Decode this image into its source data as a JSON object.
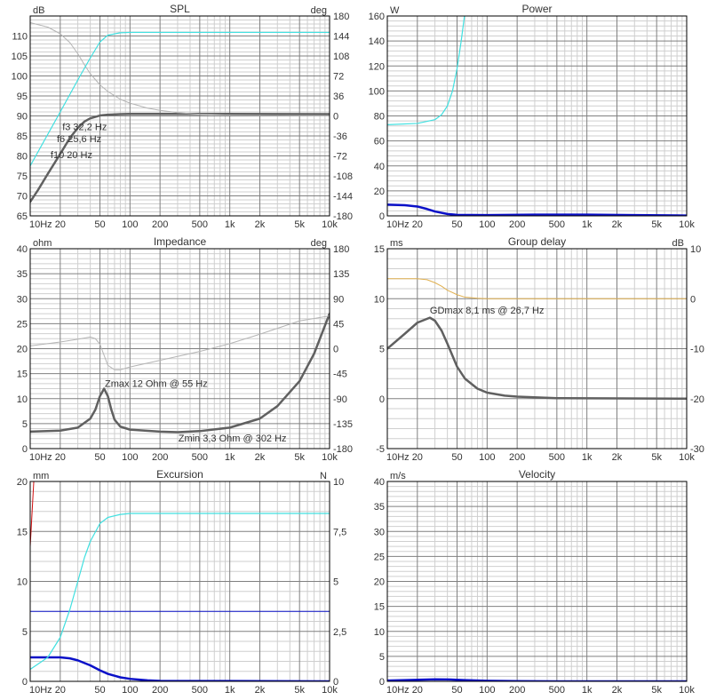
{
  "x_axis": {
    "scale": "log",
    "range": [
      10,
      10000
    ],
    "tick_values": [
      10,
      20,
      50,
      100,
      200,
      500,
      1000,
      2000,
      5000,
      10000
    ],
    "tick_labels": [
      "10Hz",
      "20",
      "50",
      "100",
      "200",
      "500",
      "1k",
      "2k",
      "5k",
      "10k"
    ]
  },
  "colors": {
    "frame": "#000000",
    "grid_major": "#808080",
    "grid_minor": "#cfcfcf",
    "main_curve": "#606060",
    "phase_curve": "#b4b4b4",
    "cyan": "#40e0e0",
    "blue": "#0a10c8",
    "orange": "#e0b050",
    "red": "#d01010"
  },
  "chart_data": [
    {
      "id": "spl",
      "type": "line",
      "title": "SPL",
      "y_unit_left": "dB",
      "y_unit_right": "deg",
      "ylim": [
        65,
        115
      ],
      "yticks": [
        65,
        70,
        75,
        80,
        85,
        90,
        95,
        100,
        105,
        110
      ],
      "y2lim": [
        -180,
        180
      ],
      "y2ticks": [
        -180,
        -144,
        -108,
        -72,
        -36,
        0,
        36,
        72,
        108,
        144,
        180
      ],
      "y2tick_labels": [
        "-180",
        "-144",
        "-108",
        "-72",
        "-36",
        "0",
        "36",
        "72",
        "108",
        "144",
        "180"
      ],
      "annotations": [
        {
          "text": "f3 32,2 Hz",
          "x": 21,
          "y": 86.5
        },
        {
          "text": "f6 25,6 Hz",
          "x": 18.5,
          "y": 83.5
        },
        {
          "text": "f10 20 Hz",
          "x": 16,
          "y": 79.5
        }
      ],
      "series": [
        {
          "axis": "y",
          "color_key": "main_curve",
          "width": 2.5,
          "points": [
            [
              10,
              68.5
            ],
            [
              12,
              71.5
            ],
            [
              15,
              75.5
            ],
            [
              20,
              80.5
            ],
            [
              25,
              84.5
            ],
            [
              30,
              87
            ],
            [
              35,
              88.6
            ],
            [
              40,
              89.4
            ],
            [
              50,
              90.1
            ],
            [
              60,
              90.3
            ],
            [
              80,
              90.45
            ],
            [
              100,
              90.5
            ],
            [
              500,
              90.5
            ],
            [
              10000,
              90.45
            ]
          ]
        },
        {
          "axis": "y2",
          "color_key": "phase_curve",
          "width": 1,
          "points": [
            [
              10,
              168
            ],
            [
              15,
              160
            ],
            [
              20,
              148
            ],
            [
              25,
              132
            ],
            [
              30,
              112
            ],
            [
              35,
              92
            ],
            [
              40,
              76
            ],
            [
              50,
              56
            ],
            [
              60,
              44
            ],
            [
              80,
              30
            ],
            [
              100,
              23
            ],
            [
              150,
              14
            ],
            [
              200,
              10
            ],
            [
              300,
              6
            ],
            [
              500,
              3
            ],
            [
              1000,
              1.5
            ],
            [
              10000,
              0
            ]
          ]
        },
        {
          "axis": "y",
          "color_key": "cyan",
          "width": 1.2,
          "points": [
            [
              10,
              77.5
            ],
            [
              20,
              91
            ],
            [
              30,
              99
            ],
            [
              40,
              104.5
            ],
            [
              50,
              108.5
            ],
            [
              60,
              110.2
            ],
            [
              80,
              110.8
            ],
            [
              100,
              110.9
            ],
            [
              10000,
              110.9
            ]
          ]
        }
      ]
    },
    {
      "id": "power",
      "type": "line",
      "title": "Power",
      "y_unit_left": "W",
      "ylim": [
        0,
        160
      ],
      "yticks": [
        0,
        20,
        40,
        60,
        80,
        100,
        120,
        140,
        160
      ],
      "series": [
        {
          "axis": "y",
          "color_key": "blue",
          "width": 2.5,
          "points": [
            [
              10,
              9
            ],
            [
              15,
              8.5
            ],
            [
              20,
              7.5
            ],
            [
              25,
              5.5
            ],
            [
              30,
              3.5
            ],
            [
              40,
              1.5
            ],
            [
              50,
              0.8
            ],
            [
              100,
              0.6
            ],
            [
              300,
              1
            ],
            [
              1000,
              1
            ],
            [
              3000,
              0.6
            ],
            [
              10000,
              0.3
            ]
          ]
        },
        {
          "axis": "y",
          "color_key": "cyan",
          "width": 1.2,
          "points": [
            [
              10,
              73
            ],
            [
              20,
              74
            ],
            [
              30,
              77
            ],
            [
              35,
              81
            ],
            [
              40,
              88
            ],
            [
              45,
              100
            ],
            [
              50,
              118
            ],
            [
              55,
              140
            ],
            [
              60,
              163
            ]
          ]
        }
      ]
    },
    {
      "id": "impedance",
      "type": "line",
      "title": "Impedance",
      "y_unit_left": "ohm",
      "y_unit_right": "deg",
      "ylim": [
        0,
        40
      ],
      "yticks": [
        0,
        5,
        10,
        15,
        20,
        25,
        30,
        35,
        40
      ],
      "y2lim": [
        -180,
        180
      ],
      "y2ticks": [
        -180,
        -135,
        -90,
        -45,
        0,
        45,
        90,
        135,
        180
      ],
      "y2tick_labels": [
        "-180",
        "-135",
        "-90",
        "-45",
        "0",
        "45",
        "90",
        "135",
        "180"
      ],
      "annotations": [
        {
          "text": "Zmax 12 Ohm @ 55 Hz",
          "x": 56,
          "y": 12.4
        },
        {
          "text": "Zmin 3,3 Ohm @ 302 Hz",
          "x": 305,
          "y": 1.4
        }
      ],
      "series": [
        {
          "axis": "y",
          "color_key": "main_curve",
          "width": 2.5,
          "points": [
            [
              10,
              3.4
            ],
            [
              20,
              3.6
            ],
            [
              30,
              4.2
            ],
            [
              40,
              6
            ],
            [
              45,
              7.8
            ],
            [
              50,
              10.5
            ],
            [
              55,
              12
            ],
            [
              60,
              10.5
            ],
            [
              65,
              7.8
            ],
            [
              70,
              5.8
            ],
            [
              80,
              4.4
            ],
            [
              100,
              3.8
            ],
            [
              200,
              3.4
            ],
            [
              302,
              3.3
            ],
            [
              500,
              3.5
            ],
            [
              1000,
              4.2
            ],
            [
              2000,
              6
            ],
            [
              3000,
              8.5
            ],
            [
              5000,
              13.5
            ],
            [
              7000,
              19
            ],
            [
              10000,
              27
            ]
          ]
        },
        {
          "axis": "y2",
          "color_key": "phase_curve",
          "width": 1,
          "points": [
            [
              10,
              5
            ],
            [
              20,
              12
            ],
            [
              30,
              17
            ],
            [
              40,
              21
            ],
            [
              45,
              18
            ],
            [
              50,
              8
            ],
            [
              55,
              -12
            ],
            [
              60,
              -30
            ],
            [
              70,
              -38
            ],
            [
              80,
              -38
            ],
            [
              100,
              -33
            ],
            [
              200,
              -21
            ],
            [
              500,
              -5
            ],
            [
              1000,
              9
            ],
            [
              2000,
              26
            ],
            [
              5000,
              50
            ],
            [
              10000,
              59
            ]
          ]
        }
      ]
    },
    {
      "id": "group_delay",
      "type": "line",
      "title": "Group delay",
      "y_unit_left": "ms",
      "y_unit_right": "dB",
      "ylim": [
        -5,
        15
      ],
      "yticks": [
        -5,
        0,
        5,
        10,
        15
      ],
      "y2lim": [
        -30,
        10
      ],
      "y2ticks": [
        -30,
        -20,
        -10,
        0,
        10
      ],
      "y2tick_labels": [
        "-30",
        "-20",
        "-10",
        "0",
        "10"
      ],
      "annotations": [
        {
          "text": "GDmax 8,1 ms  @ 26,7 Hz",
          "x": 26.7,
          "y": 8.5
        }
      ],
      "series": [
        {
          "axis": "y",
          "color_key": "main_curve",
          "width": 2.5,
          "points": [
            [
              10,
              5
            ],
            [
              15,
              6.5
            ],
            [
              20,
              7.6
            ],
            [
              26.7,
              8.1
            ],
            [
              30,
              7.8
            ],
            [
              35,
              6.8
            ],
            [
              40,
              5.5
            ],
            [
              50,
              3.2
            ],
            [
              60,
              2
            ],
            [
              80,
              1
            ],
            [
              100,
              0.6
            ],
            [
              150,
              0.3
            ],
            [
              200,
              0.2
            ],
            [
              500,
              0.05
            ],
            [
              10000,
              0
            ]
          ]
        },
        {
          "axis": "y2",
          "color_key": "orange",
          "width": 1,
          "points": [
            [
              10,
              4
            ],
            [
              20,
              4
            ],
            [
              25,
              3.8
            ],
            [
              30,
              3.2
            ],
            [
              35,
              2.5
            ],
            [
              40,
              1.7
            ],
            [
              50,
              0.8
            ],
            [
              60,
              0.3
            ],
            [
              80,
              0.1
            ],
            [
              100,
              0
            ],
            [
              10000,
              0
            ]
          ]
        }
      ]
    },
    {
      "id": "excursion",
      "type": "line",
      "title": "Excursion",
      "y_unit_left": "mm",
      "y_unit_right": "N",
      "ylim": [
        0,
        20
      ],
      "yticks": [
        0,
        5,
        10,
        15,
        20
      ],
      "y2lim": [
        0,
        10
      ],
      "y2ticks": [
        0,
        2.5,
        5,
        7.5,
        10
      ],
      "y2tick_labels": [
        "0",
        "2,5",
        "5",
        "7,5",
        "10"
      ],
      "series": [
        {
          "axis": "y",
          "color_key": "blue",
          "width": 2.5,
          "points": [
            [
              10,
              2.4
            ],
            [
              20,
              2.4
            ],
            [
              25,
              2.3
            ],
            [
              30,
              2.1
            ],
            [
              40,
              1.6
            ],
            [
              50,
              1.1
            ],
            [
              60,
              0.75
            ],
            [
              80,
              0.4
            ],
            [
              100,
              0.25
            ],
            [
              150,
              0.1
            ],
            [
              200,
              0.05
            ],
            [
              10000,
              0
            ]
          ]
        },
        {
          "axis": "y",
          "color_key": "blue",
          "width": 1,
          "points": [
            [
              10,
              7
            ],
            [
              10000,
              7
            ]
          ]
        },
        {
          "axis": "y2",
          "color_key": "cyan",
          "width": 1.2,
          "points": [
            [
              10,
              0.6
            ],
            [
              15,
              1.2
            ],
            [
              20,
              2.2
            ],
            [
              25,
              3.6
            ],
            [
              30,
              5
            ],
            [
              35,
              6.2
            ],
            [
              40,
              7
            ],
            [
              50,
              7.9
            ],
            [
              60,
              8.2
            ],
            [
              80,
              8.35
            ],
            [
              100,
              8.4
            ],
            [
              10000,
              8.4
            ]
          ]
        },
        {
          "axis": "y",
          "color_key": "red",
          "width": 1,
          "points": [
            [
              10,
              13.5
            ],
            [
              11,
              21
            ]
          ]
        }
      ]
    },
    {
      "id": "velocity",
      "type": "line",
      "title": "Velocity",
      "y_unit_left": "m/s",
      "ylim": [
        0,
        40
      ],
      "yticks": [
        0,
        5,
        10,
        15,
        20,
        25,
        30,
        35,
        40
      ],
      "series": [
        {
          "axis": "y",
          "color_key": "blue",
          "width": 2.5,
          "points": [
            [
              10,
              0.15
            ],
            [
              20,
              0.3
            ],
            [
              30,
              0.4
            ],
            [
              40,
              0.38
            ],
            [
              60,
              0.25
            ],
            [
              100,
              0.12
            ],
            [
              200,
              0.05
            ],
            [
              500,
              0
            ],
            [
              10000,
              0
            ]
          ]
        }
      ]
    }
  ]
}
